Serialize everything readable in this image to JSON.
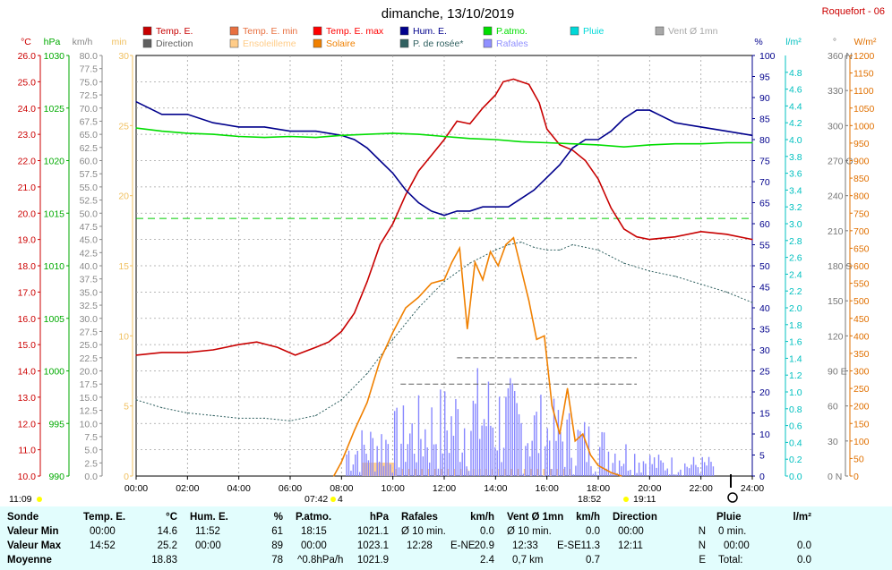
{
  "header": {
    "title": "dimanche, 13/10/2019",
    "station": "Roquefort - 06"
  },
  "legend": [
    {
      "label": "Temp. E.",
      "color": "#c80000"
    },
    {
      "label": "Temp. E. min",
      "color": "#e87040"
    },
    {
      "label": "Temp. E. max",
      "color": "#ff0000"
    },
    {
      "label": "Hum. E.",
      "color": "#00008c"
    },
    {
      "label": "P.atmo.",
      "color": "#00dd00"
    },
    {
      "label": "Pluie",
      "color": "#00d8d8"
    },
    {
      "label": "Vent Ø 1mn",
      "color": "#a8a8a8"
    },
    {
      "label": "Direction",
      "color": "#606060"
    },
    {
      "label": "Ensoleilleme",
      "color": "#ffcc88"
    },
    {
      "label": "Solaire",
      "color": "#f08000"
    },
    {
      "label": "P. de rosée*",
      "color": "#306060"
    },
    {
      "label": "Rafales",
      "color": "#9090ff"
    }
  ],
  "axis_units": {
    "temp": "°C",
    "pressure": "hPa",
    "wind": "km/h",
    "sunshine": "min",
    "humidity": "%",
    "rain": "l/m²",
    "direction": "°",
    "solar": "W/m²"
  },
  "markers": {
    "sunrise": "07:42",
    "sunset": "18:52",
    "day_start": "11:09",
    "sun_max": "19:11",
    "moon_phase": "4"
  },
  "chart_data": {
    "type": "line",
    "x_ticks": [
      "00:00",
      "02:00",
      "04:00",
      "06:00",
      "08:00",
      "10:00",
      "12:00",
      "14:00",
      "16:00",
      "18:00",
      "20:00",
      "22:00",
      "24:00"
    ],
    "axes": {
      "temp": {
        "range": [
          10.0,
          26.0
        ],
        "ticks": [
          "10.0",
          "11.0",
          "12.0",
          "13.0",
          "14.0",
          "15.0",
          "16.0",
          "17.0",
          "18.0",
          "19.0",
          "20.0",
          "21.0",
          "22.0",
          "23.0",
          "24.0",
          "25.0",
          "26.0"
        ]
      },
      "pressure": {
        "range": [
          990,
          1030
        ],
        "ticks": [
          "990",
          "995",
          "1000",
          "1005",
          "1010",
          "1015",
          "1020",
          "1025",
          "1030"
        ]
      },
      "wind": {
        "range": [
          0,
          80
        ],
        "ticks": [
          "0.0",
          "2.5",
          "5.0",
          "7.5",
          "10.0",
          "12.5",
          "15.0",
          "17.5",
          "20.0",
          "22.5",
          "25.0",
          "27.5",
          "30.0",
          "32.5",
          "35.0",
          "37.5",
          "40.0",
          "42.5",
          "45.0",
          "47.5",
          "50.0",
          "52.5",
          "55.0",
          "57.5",
          "60.0",
          "62.5",
          "65.0",
          "67.5",
          "70.0",
          "72.5",
          "75.0",
          "77.5",
          "80.0"
        ]
      },
      "sunshine": {
        "range": [
          0,
          30
        ],
        "ticks": [
          "0",
          "5",
          "10",
          "15",
          "20",
          "25",
          "30"
        ]
      },
      "humidity": {
        "range": [
          0,
          100
        ],
        "ticks": [
          "0",
          "5",
          "10",
          "15",
          "20",
          "25",
          "30",
          "35",
          "40",
          "45",
          "50",
          "55",
          "60",
          "65",
          "70",
          "75",
          "80",
          "85",
          "90",
          "95",
          "100"
        ]
      },
      "rain": {
        "range": [
          0.0,
          5.0
        ],
        "ticks": [
          "0.0",
          "0.2",
          "0.4",
          "0.6",
          "0.8",
          "1.0",
          "1.2",
          "1.4",
          "1.6",
          "1.8",
          "2.0",
          "2.2",
          "2.4",
          "2.6",
          "2.8",
          "3.0",
          "3.2",
          "3.4",
          "3.6",
          "3.8",
          "4.0",
          "4.2",
          "4.4",
          "4.6",
          "4.8"
        ]
      },
      "direction": {
        "range": [
          0,
          360
        ],
        "ticks": [
          "0  N",
          "30",
          "60",
          "90  E",
          "120",
          "150",
          "180  S",
          "210",
          "240",
          "270  O",
          "300",
          "330",
          "360  N"
        ]
      },
      "solar": {
        "range": [
          0,
          1200
        ],
        "ticks": [
          "0",
          "50",
          "100",
          "150",
          "200",
          "250",
          "300",
          "350",
          "400",
          "450",
          "500",
          "550",
          "600",
          "650",
          "700",
          "750",
          "800",
          "850",
          "900",
          "950",
          "1000",
          "1050",
          "1100",
          "1150",
          "1200"
        ]
      }
    },
    "series": [
      {
        "name": "Temp. E.",
        "axis": "temp",
        "color": "#c80000",
        "x": [
          0,
          1,
          2,
          3,
          4,
          4.7,
          5.5,
          6.2,
          7,
          7.5,
          8,
          8.5,
          9,
          9.5,
          10,
          10.5,
          11,
          11.5,
          12,
          12.5,
          13,
          13.5,
          14,
          14.3,
          14.7,
          15,
          15.3,
          15.7,
          16,
          16.5,
          17,
          17.5,
          18,
          18.5,
          19,
          19.5,
          20,
          21,
          22,
          23,
          24
        ],
        "y": [
          14.6,
          14.7,
          14.7,
          14.8,
          15.0,
          15.1,
          14.9,
          14.6,
          14.9,
          15.1,
          15.5,
          16.2,
          17.4,
          18.8,
          19.6,
          20.7,
          21.6,
          22.2,
          22.8,
          23.5,
          23.4,
          24.0,
          24.5,
          25.0,
          25.1,
          25.0,
          24.9,
          24.2,
          23.2,
          22.6,
          22.4,
          22.0,
          21.3,
          20.2,
          19.4,
          19.1,
          19.0,
          19.1,
          19.3,
          19.2,
          19.0
        ]
      },
      {
        "name": "Hum. E.",
        "axis": "humidity",
        "color": "#00008c",
        "x": [
          0,
          1,
          2,
          3,
          4,
          5,
          6,
          7,
          8,
          8.5,
          9,
          9.5,
          10,
          10.5,
          11,
          11.5,
          12,
          12.5,
          13,
          13.5,
          14,
          14.5,
          15,
          15.5,
          16,
          16.5,
          17,
          17.5,
          18,
          18.5,
          19,
          19.5,
          20,
          21,
          22,
          23,
          24
        ],
        "y": [
          89,
          86,
          86,
          84,
          83,
          83,
          82,
          82,
          81,
          80,
          78,
          75,
          72,
          68,
          65,
          63,
          62,
          63,
          63,
          64,
          64,
          64,
          66,
          68,
          71,
          74,
          78,
          80,
          80,
          82,
          85,
          87,
          87,
          84,
          83,
          82,
          81
        ]
      },
      {
        "name": "P.atmo.",
        "axis": "pressure",
        "color": "#00dd00",
        "x": [
          0,
          1,
          2,
          3,
          4,
          5,
          6,
          7,
          8,
          9,
          10,
          11,
          12,
          13,
          14,
          15,
          16,
          17,
          18,
          19,
          20,
          21,
          22,
          23,
          24
        ],
        "y": [
          1023.1,
          1022.8,
          1022.6,
          1022.5,
          1022.3,
          1022.2,
          1022.3,
          1022.2,
          1022.4,
          1022.5,
          1022.6,
          1022.5,
          1022.3,
          1022.1,
          1022.0,
          1021.8,
          1021.7,
          1021.6,
          1021.5,
          1021.3,
          1021.5,
          1021.6,
          1021.6,
          1021.7,
          1021.7
        ]
      },
      {
        "name": "P. de rosée*",
        "axis": "temp",
        "color": "#306060",
        "x": [
          0,
          1,
          2,
          3,
          4,
          5,
          6,
          7,
          8,
          9,
          10,
          11,
          12,
          13,
          14,
          14.5,
          15,
          15.5,
          16,
          16.5,
          17,
          17.5,
          18,
          19,
          20,
          21,
          22,
          23,
          24
        ],
        "y": [
          12.9,
          12.6,
          12.4,
          12.3,
          12.2,
          12.2,
          12.1,
          12.3,
          12.9,
          13.9,
          15.2,
          16.4,
          17.4,
          18.1,
          18.6,
          18.8,
          18.9,
          18.7,
          18.6,
          18.6,
          18.8,
          18.7,
          18.6,
          18.1,
          17.8,
          17.6,
          17.3,
          17.0,
          16.6
        ]
      },
      {
        "name": "Solaire",
        "axis": "solar",
        "color": "#f08000",
        "x": [
          7.7,
          8,
          8.5,
          9,
          9.5,
          10,
          10.5,
          11,
          11.5,
          12,
          12.3,
          12.6,
          12.9,
          13.2,
          13.5,
          13.8,
          14.1,
          14.4,
          14.7,
          15,
          15.3,
          15.6,
          15.9,
          16.2,
          16.5,
          16.8,
          17.1,
          17.4,
          17.7,
          18,
          18.5,
          18.9
        ],
        "y": [
          0,
          40,
          130,
          210,
          330,
          410,
          480,
          510,
          550,
          560,
          610,
          650,
          420,
          610,
          560,
          640,
          600,
          660,
          680,
          590,
          500,
          390,
          400,
          200,
          120,
          250,
          100,
          120,
          60,
          30,
          10,
          0
        ]
      },
      {
        "name": "Temp. E. max",
        "axis": "temp",
        "color": "#ff0000",
        "x": [
          0,
          24
        ],
        "y": [
          19.8,
          19.8
        ]
      }
    ],
    "rafales_note": "Rafales shown as dense blue vertical bars between 08:00 and 22:30",
    "moyenne_wind": 20.0
  },
  "summary": {
    "columns": [
      {
        "header": "Sonde",
        "unit": ""
      },
      {
        "header": "Temp. E.",
        "unit": "°C"
      },
      {
        "header": "Hum. E.",
        "unit": "%"
      },
      {
        "header": "P.atmo.",
        "unit": "hPa"
      },
      {
        "header": "Rafales",
        "unit": "km/h"
      },
      {
        "header": "Vent Ø 1mn",
        "unit": "km/h"
      },
      {
        "header": "Direction",
        "unit": ""
      },
      {
        "header": "Pluie",
        "unit": "l/m²"
      }
    ],
    "row_labels": [
      "Valeur Min",
      "Valeur Max",
      "Moyenne"
    ],
    "temp": {
      "min_time": "00:00",
      "min_val": "14.6",
      "max_time": "14:52",
      "max_val": "25.2",
      "avg": "18.83"
    },
    "hum": {
      "min_time": "11:52",
      "min_val": "61",
      "max_time": "00:00",
      "max_val": "89",
      "avg": "78"
    },
    "press": {
      "min_time": "18:15",
      "min_val": "1021.1",
      "max_time": "00:00",
      "max_val": "1023.1",
      "trend": "^0.8hPa/h",
      "avg": "1021.9"
    },
    "rafales": {
      "label10": "Ø 10 min.",
      "min_val": "0.0",
      "max_time": "12:28",
      "max_dir": "E-NE",
      "max_val": "20.9",
      "avg": "2.4"
    },
    "vent": {
      "label10": "Ø 10 min.",
      "min_val": "0.0",
      "max_time": "12:33",
      "max_dir": "E-SE",
      "max_val": "11.3",
      "dist": "0,7 km",
      "avg": "0.7"
    },
    "dir": {
      "min_time": "00:00",
      "min_dir": "N",
      "max_time": "12:11",
      "max_dir": "N",
      "avg_dir": "E"
    },
    "pluie": {
      "min_text": "0 min.",
      "max_time": "00:00",
      "max_val": "0.0",
      "total_label": "Total:",
      "total_val": "0.0"
    }
  }
}
